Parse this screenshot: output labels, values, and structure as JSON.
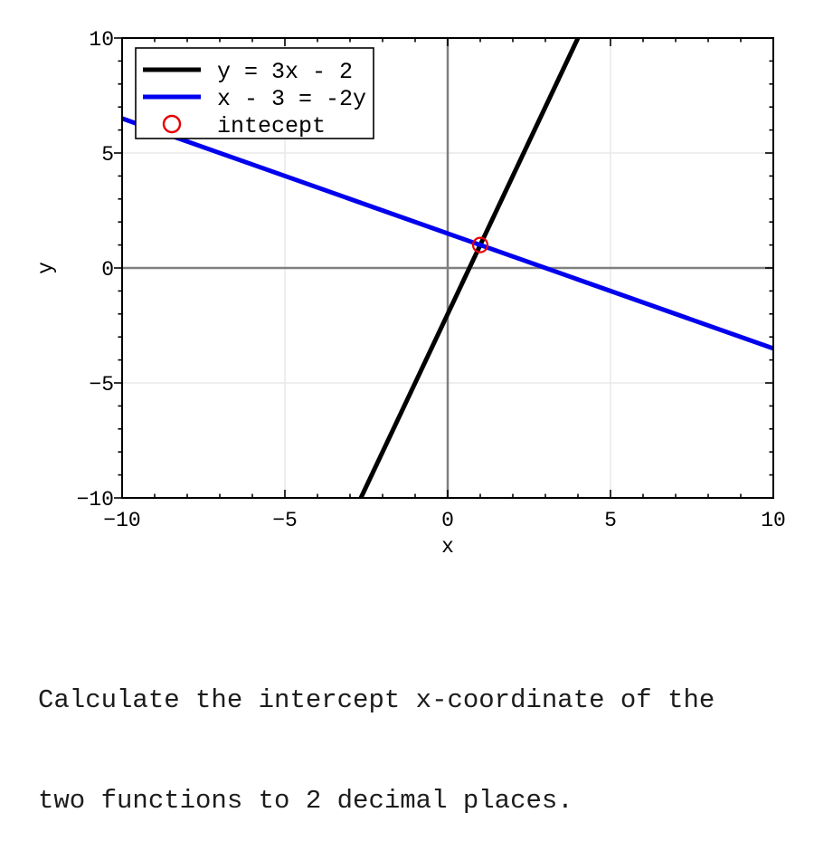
{
  "chart_data": {
    "type": "line",
    "title": "",
    "xlabel": "x",
    "ylabel": "y",
    "xlim": [
      -10,
      10
    ],
    "ylim": [
      -10,
      10
    ],
    "xticks": {
      "values": [
        -10,
        -5,
        0,
        5,
        10
      ],
      "labels": [
        "−10",
        "−5",
        "0",
        "5",
        "10"
      ]
    },
    "yticks": {
      "values": [
        -10,
        -5,
        0,
        5,
        10
      ],
      "labels": [
        "−10",
        "−5",
        "0",
        "5",
        "10"
      ]
    },
    "minor_tick_step": 1,
    "grid": true,
    "zero_axis_lines": true,
    "legend_position": "upper-left",
    "series": [
      {
        "name": "y = 3x - 2",
        "color": "#000000",
        "points": [
          [
            -2.6667,
            -10
          ],
          [
            4,
            10
          ]
        ]
      },
      {
        "name": "x - 3 = -2y",
        "color": "#0000ee",
        "points": [
          [
            -10,
            6.5
          ],
          [
            10,
            -3.5
          ]
        ]
      }
    ],
    "markers": [
      {
        "label": "intecept",
        "x": 1,
        "y": 1,
        "color": "#e60000",
        "shape": "circle-outline"
      }
    ],
    "colors": {
      "grid": "#e8e8e8",
      "zero_axis": "#808080",
      "frame": "#000000",
      "legend_border": "#000000",
      "legend_background": "#ffffff"
    }
  },
  "question": {
    "lines": [
      "Calculate the intercept x-coordinate of the",
      "two functions to 2 decimal places."
    ]
  }
}
